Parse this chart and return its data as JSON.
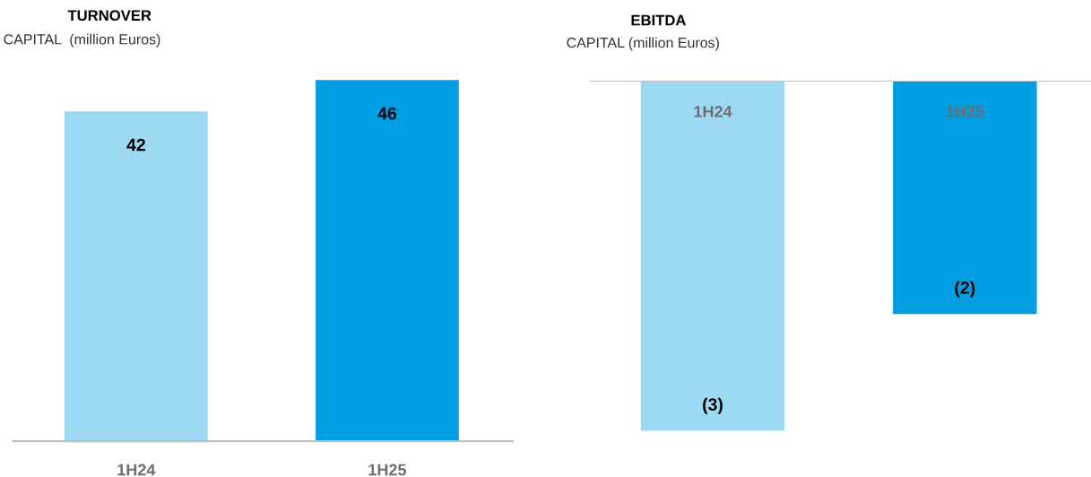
{
  "chart_data": [
    {
      "type": "bar",
      "title": "TURNOVER",
      "subtitle": "CAPITAL  (million Euros)",
      "categories": [
        "1H24",
        "1H25"
      ],
      "values": [
        42,
        46
      ],
      "colors": [
        "#9dd9f3",
        "#009fe3"
      ],
      "tick_labels": "x",
      "data_labels": true,
      "grid": false,
      "legend": false
    },
    {
      "type": "bar",
      "title": "EBITDA",
      "subtitle": "CAPITAL (million Euros)",
      "categories": [
        "1H24",
        "1H25"
      ],
      "values": [
        -3,
        -2
      ],
      "value_labels": [
        "(3)",
        "(2)"
      ],
      "colors": [
        "#9dd9f3",
        "#009fe3"
      ],
      "tick_labels": "x",
      "grid": false,
      "legend": false
    }
  ]
}
